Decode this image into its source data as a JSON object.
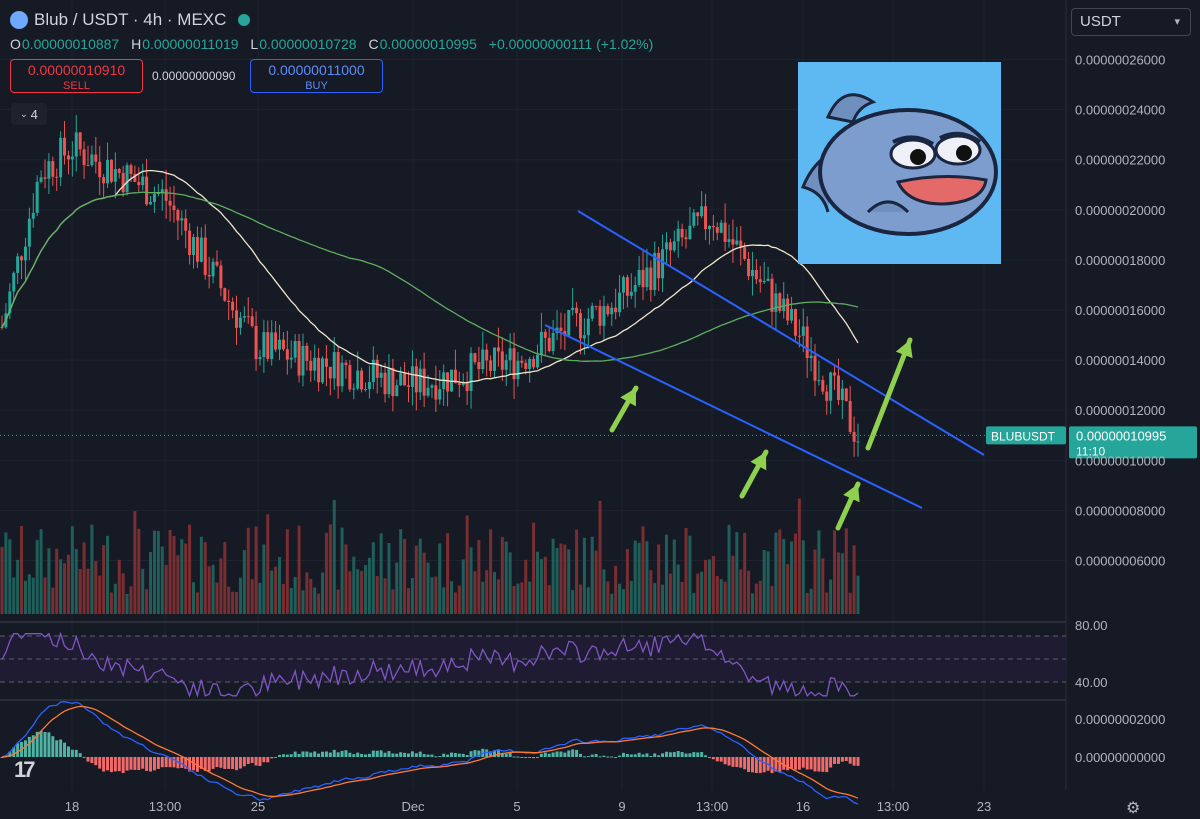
{
  "header": {
    "symbol": "Blub / USDT · 4h · MEXC",
    "ohlc": [
      {
        "k": "O",
        "v": "0.00000010887"
      },
      {
        "k": "H",
        "v": "0.00000011019"
      },
      {
        "k": "L",
        "v": "0.00000010728"
      },
      {
        "k": "C",
        "v": "0.00000010995"
      }
    ],
    "change": "+0.00000000111 (+1.02%)"
  },
  "trade": {
    "sell_price": "0.00000010910",
    "sell_label": "SELL",
    "spread": "0.00000000090",
    "buy_price": "0.00000011000",
    "buy_label": "BUY"
  },
  "indicators_count": "4",
  "currency": "USDT",
  "colors": {
    "background": "#161a25",
    "up": "#26a69a",
    "down": "#ef5350",
    "ma_fast": "#efe6c8",
    "ma_slow": "#5fae5f",
    "channel": "#2962ff",
    "arrow": "#8fd14f",
    "rsi": "#7e57c2",
    "macd": "#2962ff",
    "signal": "#ff7a33"
  },
  "icons": {
    "price_alert": "gear-icon",
    "brand": "tradingview-logo-icon",
    "meme": "blub-fish-meme-image"
  },
  "chart_data": {
    "type": "candlestick",
    "symbol_label": "BLUBUSDT",
    "last_price": "0.00000010995",
    "countdown": "11:10",
    "y_ticks": [
      "0.00000026000",
      "0.00000024000",
      "0.00000022000",
      "0.00000020000",
      "0.00000018000",
      "0.00000016000",
      "0.00000014000",
      "0.00000012000",
      "0.00000010000",
      "0.00000008000",
      "0.00000006000"
    ],
    "ylim": [
      5.3e-08,
      2.63e-07
    ],
    "x_ticks": [
      "18",
      "13:00",
      "25",
      "Dec",
      "5",
      "9",
      "13:00",
      "16",
      "13:00",
      "23"
    ],
    "key_points": [
      {
        "x": "18",
        "close": 2.25e-07
      },
      {
        "x": "13:00",
        "close": 2.05e-07
      },
      {
        "x": "25",
        "close": 1.45e-07
      },
      {
        "x": "Dec",
        "close": 1.3e-07
      },
      {
        "x": "5",
        "close": 1.4e-07
      },
      {
        "x": "9",
        "close": 1.65e-07
      },
      {
        "x": "13:00",
        "close": 1.98e-07
      },
      {
        "x": "16",
        "close": 1.48e-07
      },
      {
        "x": "last",
        "close": 1.0995e-07
      }
    ],
    "rsi_ticks": [
      "80.00",
      "40.00"
    ],
    "macd_ticks": [
      "0.00000002000",
      "0.00000000000"
    ]
  }
}
